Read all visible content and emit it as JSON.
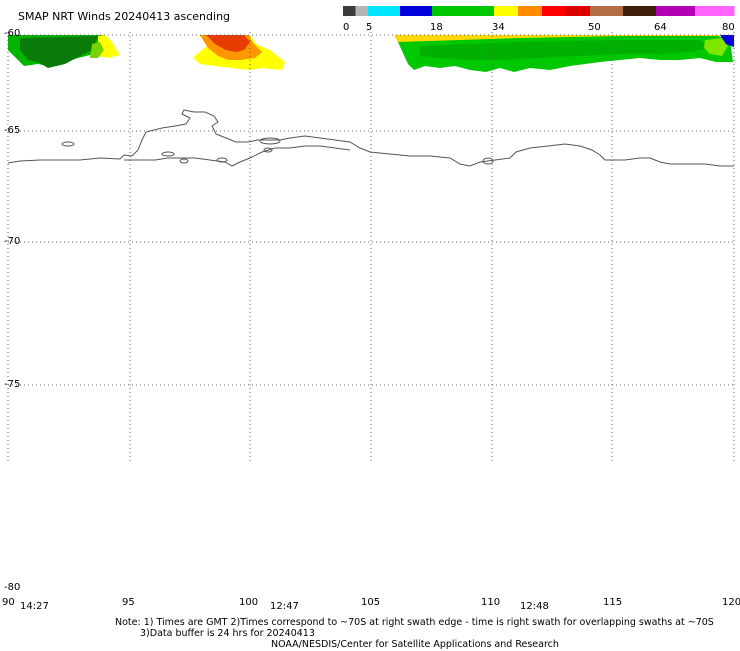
{
  "title": "SMAP NRT Winds 20240413 ascending",
  "legend": {
    "ticks": [
      "0",
      "5",
      "18",
      "34",
      "50",
      "64",
      "80"
    ],
    "bands": [
      {
        "from": 0,
        "to": 5,
        "colors": [
          "#3c3c3c",
          "#b4b4b4"
        ]
      },
      {
        "from": 5,
        "to": 18,
        "colors": [
          "#00e6ff",
          "#0000dc"
        ]
      },
      {
        "from": 18,
        "to": 34,
        "colors": [
          "#00c800",
          "#00c800"
        ]
      },
      {
        "from": 34,
        "to": 50,
        "colors": [
          "#ffff00",
          "#ff8c00",
          "#ff0000",
          "#dc0000"
        ]
      },
      {
        "from": 50,
        "to": 64,
        "colors": [
          "#b46e46",
          "#3c1e0a"
        ]
      },
      {
        "from": 64,
        "to": 80,
        "colors": [
          "#b400b4",
          "#ff64ff"
        ]
      }
    ]
  },
  "lat_labels": [
    "-60",
    "-65",
    "-70",
    "-75",
    "-80"
  ],
  "lon_labels": [
    "90",
    "95",
    "100",
    "105",
    "110",
    "115",
    "120"
  ],
  "time_labels": [
    "14:27",
    "12:47",
    "12:48"
  ],
  "notes": [
    "Note: 1) Times are GMT 2)Times correspond to ~70S at right swath edge - time is right swath for overlapping swaths at ~70S",
    "3)Data buffer is 24 hrs for 20240413",
    "NOAA/NESDIS/Center for Satellite Applications and Research"
  ],
  "colors": {
    "wind_green": "#00c800",
    "wind_dark_green": "#007800",
    "wind_yellow": "#ffff00",
    "wind_orange": "#ff8c00",
    "wind_red": "#e63c00",
    "wind_blue": "#0000dc",
    "coast": "#555555",
    "grid": "#666666"
  }
}
